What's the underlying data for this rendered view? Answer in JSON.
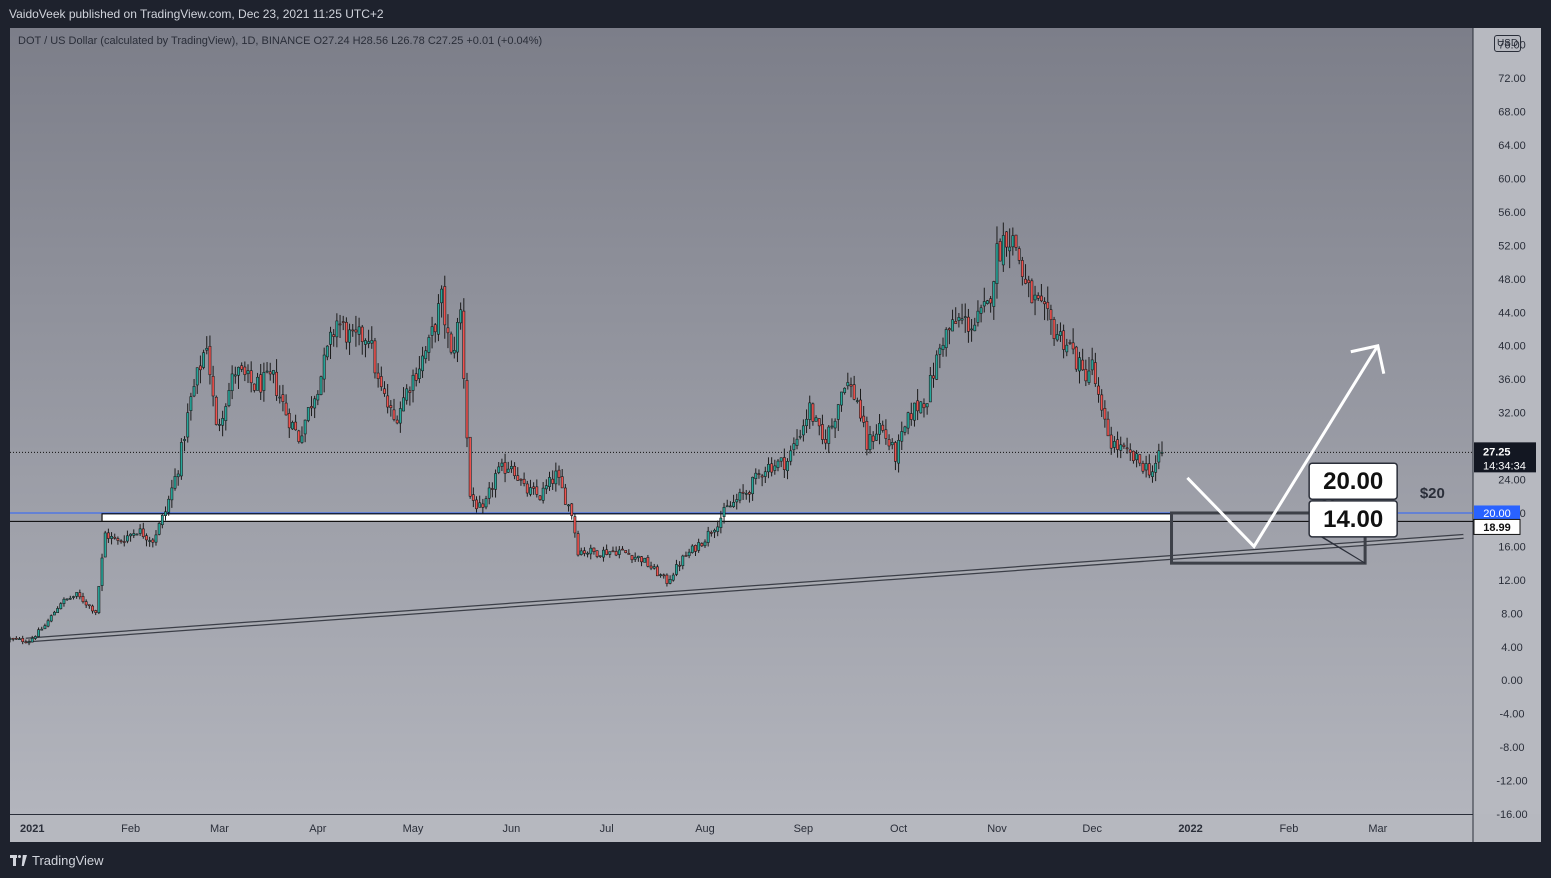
{
  "header": {
    "publish_text": "VaidoVeek published on TradingView.com, Dec 23, 2021 11:25 UTC+2"
  },
  "legend": {
    "text": "DOT / US Dollar (calculated by TradingView), 1D, BINANCE  O27.24  H28.56  L26.78  C27.25  +0.01 (+0.04%)"
  },
  "currency_button": "USD",
  "footer": {
    "brand": "TradingView"
  },
  "colors": {
    "up": "#26a69a",
    "down": "#ef5350",
    "candle_outline": "#1b1b1b",
    "accent_line": "#2962ff",
    "price_label_bg": "#131722"
  },
  "chart_data": {
    "type": "candlestick",
    "symbol": "DOT / US Dollar",
    "interval": "1D",
    "exchange": "BINANCE",
    "ohlc_last": {
      "open": 27.24,
      "high": 28.56,
      "low": 26.78,
      "close": 27.25,
      "change": "+0.01",
      "change_pct": "+0.04%"
    },
    "ylim": [
      -16,
      78
    ],
    "y_ticks": [
      "76.00",
      "72.00",
      "68.00",
      "64.00",
      "60.00",
      "56.00",
      "52.00",
      "48.00",
      "44.00",
      "40.00",
      "36.00",
      "32.00",
      "28.00",
      "24.00",
      "20.00",
      "16.00",
      "12.00",
      "8.00",
      "4.00",
      "0.00",
      "-4.00",
      "-8.00",
      "-12.00",
      "-16.00"
    ],
    "x_axis": {
      "start": "2020-12-25",
      "end": "2022-03-31",
      "labels": [
        {
          "date": "2021-01-01",
          "label": "2021"
        },
        {
          "date": "2021-02-01",
          "label": "Feb"
        },
        {
          "date": "2021-03-01",
          "label": "Mar"
        },
        {
          "date": "2021-04-01",
          "label": "Apr"
        },
        {
          "date": "2021-05-01",
          "label": "May"
        },
        {
          "date": "2021-06-01",
          "label": "Jun"
        },
        {
          "date": "2021-07-01",
          "label": "Jul"
        },
        {
          "date": "2021-08-01",
          "label": "Aug"
        },
        {
          "date": "2021-09-01",
          "label": "Sep"
        },
        {
          "date": "2021-10-01",
          "label": "Oct"
        },
        {
          "date": "2021-11-01",
          "label": "Nov"
        },
        {
          "date": "2021-12-01",
          "label": "Dec"
        },
        {
          "date": "2022-01-01",
          "label": "2022"
        },
        {
          "date": "2022-02-01",
          "label": "Feb"
        },
        {
          "date": "2022-03-01",
          "label": "Mar"
        }
      ]
    },
    "price_path": [
      [
        "2020-12-25",
        4.9
      ],
      [
        "2020-12-31",
        4.7
      ],
      [
        "2021-01-05",
        6.5
      ],
      [
        "2021-01-10",
        9.3
      ],
      [
        "2021-01-15",
        10.2
      ],
      [
        "2021-01-21",
        8.2
      ],
      [
        "2021-01-24",
        17.5
      ],
      [
        "2021-01-28",
        16.5
      ],
      [
        "2021-02-03",
        18.0
      ],
      [
        "2021-02-08",
        16.8
      ],
      [
        "2021-02-12",
        20.2
      ],
      [
        "2021-02-16",
        25.5
      ],
      [
        "2021-02-20",
        33.5
      ],
      [
        "2021-02-25",
        40.5
      ],
      [
        "2021-02-28",
        30.0
      ],
      [
        "2021-03-06",
        37.0
      ],
      [
        "2021-03-12",
        35.2
      ],
      [
        "2021-03-18",
        36.0
      ],
      [
        "2021-03-22",
        32.0
      ],
      [
        "2021-03-26",
        29.0
      ],
      [
        "2021-04-02",
        36.5
      ],
      [
        "2021-04-07",
        43.0
      ],
      [
        "2021-04-12",
        40.5
      ],
      [
        "2021-04-17",
        41.5
      ],
      [
        "2021-04-20",
        35.5
      ],
      [
        "2021-04-25",
        31.0
      ],
      [
        "2021-04-30",
        35.5
      ],
      [
        "2021-05-06",
        40.0
      ],
      [
        "2021-05-10",
        45.5
      ],
      [
        "2021-05-13",
        38.5
      ],
      [
        "2021-05-16",
        44.0
      ],
      [
        "2021-05-19",
        22.0
      ],
      [
        "2021-05-23",
        20.0
      ],
      [
        "2021-05-27",
        24.5
      ],
      [
        "2021-06-01",
        26.0
      ],
      [
        "2021-06-05",
        22.8
      ],
      [
        "2021-06-10",
        22.0
      ],
      [
        "2021-06-15",
        24.5
      ],
      [
        "2021-06-20",
        20.0
      ],
      [
        "2021-06-22",
        15.5
      ],
      [
        "2021-06-28",
        15.3
      ],
      [
        "2021-07-05",
        15.5
      ],
      [
        "2021-07-12",
        14.5
      ],
      [
        "2021-07-20",
        11.8
      ],
      [
        "2021-07-25",
        14.5
      ],
      [
        "2021-08-01",
        17.0
      ],
      [
        "2021-08-08",
        20.5
      ],
      [
        "2021-08-14",
        22.5
      ],
      [
        "2021-08-20",
        25.5
      ],
      [
        "2021-08-27",
        26.2
      ],
      [
        "2021-09-03",
        32.5
      ],
      [
        "2021-09-07",
        28.5
      ],
      [
        "2021-09-10",
        30.5
      ],
      [
        "2021-09-14",
        36.0
      ],
      [
        "2021-09-18",
        33.5
      ],
      [
        "2021-09-21",
        28.0
      ],
      [
        "2021-09-25",
        30.5
      ],
      [
        "2021-09-30",
        26.8
      ],
      [
        "2021-10-05",
        32.0
      ],
      [
        "2021-10-10",
        34.0
      ],
      [
        "2021-10-15",
        41.0
      ],
      [
        "2021-10-20",
        43.0
      ],
      [
        "2021-10-25",
        42.5
      ],
      [
        "2021-10-29",
        44.5
      ],
      [
        "2021-11-01",
        51.0
      ],
      [
        "2021-11-04",
        53.5
      ],
      [
        "2021-11-07",
        52.0
      ],
      [
        "2021-11-10",
        47.0
      ],
      [
        "2021-11-15",
        44.0
      ],
      [
        "2021-11-20",
        41.5
      ],
      [
        "2021-11-24",
        40.0
      ],
      [
        "2021-11-28",
        36.5
      ],
      [
        "2021-12-01",
        37.5
      ],
      [
        "2021-12-04",
        31.5
      ],
      [
        "2021-12-07",
        28.5
      ],
      [
        "2021-12-12",
        27.0
      ],
      [
        "2021-12-16",
        26.0
      ],
      [
        "2021-12-20",
        25.0
      ],
      [
        "2021-12-23",
        27.25
      ]
    ],
    "horizontal_lines": [
      {
        "price": 20.0,
        "label": "20.00",
        "style": "blue"
      },
      {
        "price": 18.99,
        "label": "18.99",
        "style": "black"
      }
    ],
    "support_band": {
      "from": 19.0,
      "to": 19.9,
      "start": "2021-01-23",
      "end": "2021-12-26"
    },
    "trendline": {
      "start": [
        "2020-12-30",
        4.8
      ],
      "end": [
        "2022-03-28",
        17.2
      ]
    },
    "last_price": {
      "value": 27.25,
      "label": "27.25",
      "countdown": "14:34:34"
    },
    "target_zone": {
      "from": 14.0,
      "to": 20.0,
      "start": "2021-12-26",
      "end": "2022-02-25"
    },
    "projection_path": [
      [
        "2021-12-31",
        24.2
      ],
      [
        "2022-01-21",
        16.0
      ],
      [
        "2022-03-01",
        40.0
      ]
    ],
    "annotations": [
      {
        "text": "$20",
        "date": "2022-01-20",
        "price": 21.8
      },
      {
        "text": "20.00",
        "date": "2022-02-08",
        "price": 23.8,
        "callout_to": [
          "2022-02-25",
          20.0
        ]
      },
      {
        "text": "14.00",
        "date": "2022-02-08",
        "price": 19.3,
        "callout_to": [
          "2022-02-25",
          14.0
        ]
      }
    ]
  }
}
